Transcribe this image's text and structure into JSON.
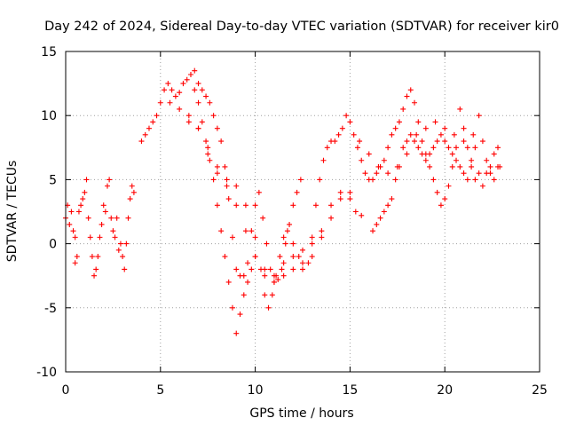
{
  "chart_data": {
    "type": "scatter",
    "title": "Day 242 of 2024, Sidereal Day-to-day VTEC variation (SDTVAR) for receiver kir0",
    "xlabel": "GPS time / hours",
    "ylabel": "SDTVAR / TECUs",
    "xlim": [
      0,
      25
    ],
    "ylim": [
      -10,
      15
    ],
    "xticks": [
      "0",
      "5",
      "10",
      "15",
      "20",
      "25"
    ],
    "yticks": [
      "-10",
      "-5",
      "0",
      "5",
      "10",
      "15"
    ],
    "grid": true,
    "marker": "+",
    "color": "#ff0000",
    "series": [
      {
        "name": "s1",
        "points": [
          [
            0.0,
            2.0
          ],
          [
            0.1,
            3.0
          ],
          [
            0.2,
            1.5
          ],
          [
            0.3,
            2.5
          ],
          [
            0.4,
            1.0
          ],
          [
            0.5,
            0.5
          ],
          [
            0.5,
            -1.5
          ],
          [
            0.6,
            -1.0
          ],
          [
            0.7,
            2.5
          ],
          [
            0.8,
            3.0
          ],
          [
            0.9,
            3.5
          ],
          [
            1.0,
            4.0
          ],
          [
            1.1,
            5.0
          ],
          [
            1.2,
            2.0
          ],
          [
            1.3,
            0.5
          ],
          [
            1.4,
            -1.0
          ],
          [
            1.5,
            -2.5
          ],
          [
            1.6,
            -2.0
          ],
          [
            1.7,
            -1.0
          ],
          [
            1.8,
            0.5
          ],
          [
            1.9,
            1.5
          ],
          [
            2.0,
            3.0
          ],
          [
            2.1,
            2.5
          ],
          [
            2.2,
            4.5
          ],
          [
            2.3,
            5.0
          ],
          [
            2.4,
            2.0
          ],
          [
            2.5,
            1.0
          ],
          [
            2.6,
            0.5
          ],
          [
            2.7,
            2.0
          ],
          [
            2.8,
            -0.5
          ],
          [
            2.9,
            0.0
          ],
          [
            3.0,
            -1.0
          ],
          [
            3.1,
            -2.0
          ],
          [
            3.2,
            0.0
          ],
          [
            3.3,
            2.0
          ],
          [
            3.4,
            3.5
          ],
          [
            3.5,
            4.5
          ],
          [
            3.6,
            4.0
          ]
        ]
      },
      {
        "name": "s2",
        "points": [
          [
            4.0,
            8.0
          ],
          [
            4.2,
            8.5
          ],
          [
            4.4,
            9.0
          ],
          [
            4.6,
            9.5
          ],
          [
            4.8,
            10.0
          ],
          [
            5.0,
            11.0
          ],
          [
            5.2,
            12.0
          ],
          [
            5.4,
            12.5
          ],
          [
            5.6,
            12.0
          ],
          [
            5.8,
            11.5
          ],
          [
            6.0,
            11.8
          ],
          [
            6.2,
            12.5
          ],
          [
            6.4,
            12.8
          ],
          [
            6.6,
            13.2
          ],
          [
            6.8,
            13.5
          ],
          [
            7.0,
            12.5
          ],
          [
            7.2,
            12.0
          ],
          [
            7.4,
            11.5
          ],
          [
            7.6,
            11.0
          ],
          [
            7.8,
            10.0
          ],
          [
            8.0,
            9.0
          ],
          [
            8.2,
            8.0
          ],
          [
            8.4,
            6.0
          ],
          [
            8.6,
            3.5
          ],
          [
            8.8,
            0.5
          ],
          [
            9.0,
            -2.0
          ],
          [
            9.2,
            -2.5
          ],
          [
            9.4,
            -2.5
          ],
          [
            9.6,
            -1.5
          ],
          [
            9.8,
            1.0
          ],
          [
            10.0,
            3.0
          ],
          [
            10.2,
            4.0
          ],
          [
            10.4,
            2.0
          ],
          [
            10.6,
            0.0
          ],
          [
            10.8,
            -2.0
          ],
          [
            11.0,
            -3.0
          ],
          [
            11.2,
            -2.8
          ],
          [
            11.4,
            -2.0
          ],
          [
            11.6,
            0.0
          ],
          [
            11.8,
            1.5
          ],
          [
            12.0,
            3.0
          ],
          [
            12.2,
            4.0
          ],
          [
            12.4,
            5.0
          ]
        ]
      },
      {
        "name": "s3",
        "points": [
          [
            5.5,
            11.0
          ],
          [
            6.0,
            10.5
          ],
          [
            6.5,
            10.0
          ],
          [
            7.0,
            9.0
          ],
          [
            7.5,
            7.0
          ],
          [
            8.0,
            5.5
          ],
          [
            8.5,
            5.0
          ],
          [
            9.0,
            4.5
          ],
          [
            9.5,
            3.0
          ],
          [
            10.0,
            0.5
          ],
          [
            10.3,
            -2.0
          ],
          [
            10.5,
            -4.0
          ],
          [
            10.7,
            -5.0
          ],
          [
            10.9,
            -4.0
          ],
          [
            11.1,
            -2.5
          ],
          [
            11.3,
            -1.0
          ],
          [
            11.5,
            0.5
          ],
          [
            11.7,
            1.0
          ],
          [
            12.0,
            0.0
          ],
          [
            12.3,
            -1.0
          ],
          [
            12.5,
            -2.0
          ],
          [
            12.8,
            -1.5
          ],
          [
            13.0,
            0.5
          ],
          [
            13.2,
            3.0
          ],
          [
            13.4,
            5.0
          ],
          [
            13.6,
            6.5
          ],
          [
            13.8,
            7.5
          ],
          [
            14.0,
            8.0
          ],
          [
            14.2,
            8.0
          ],
          [
            14.4,
            8.5
          ],
          [
            14.6,
            9.0
          ],
          [
            14.8,
            10.0
          ],
          [
            15.0,
            9.5
          ],
          [
            15.2,
            8.5
          ],
          [
            15.4,
            7.5
          ],
          [
            15.6,
            6.5
          ],
          [
            15.8,
            5.5
          ],
          [
            16.0,
            5.0
          ],
          [
            16.2,
            5.0
          ],
          [
            16.4,
            5.5
          ],
          [
            16.6,
            6.0
          ],
          [
            16.8,
            6.5
          ],
          [
            17.0,
            7.5
          ],
          [
            17.2,
            8.5
          ],
          [
            17.4,
            9.0
          ],
          [
            17.6,
            9.5
          ],
          [
            17.8,
            10.5
          ],
          [
            18.0,
            11.5
          ],
          [
            18.2,
            12.0
          ],
          [
            18.4,
            11.0
          ],
          [
            18.6,
            9.5
          ],
          [
            18.8,
            8.0
          ],
          [
            19.0,
            7.0
          ],
          [
            19.2,
            6.0
          ],
          [
            19.4,
            5.0
          ],
          [
            19.6,
            4.0
          ],
          [
            19.8,
            3.0
          ],
          [
            20.0,
            3.5
          ],
          [
            20.2,
            4.5
          ],
          [
            20.4,
            6.0
          ],
          [
            20.6,
            7.5
          ],
          [
            20.8,
            10.5
          ],
          [
            21.0,
            9.0
          ],
          [
            21.2,
            7.5
          ],
          [
            21.4,
            6.0
          ],
          [
            21.6,
            5.0
          ]
        ]
      },
      {
        "name": "s4",
        "points": [
          [
            6.8,
            12.0
          ],
          [
            7.0,
            11.0
          ],
          [
            7.2,
            9.5
          ],
          [
            7.4,
            8.0
          ],
          [
            7.6,
            6.5
          ],
          [
            7.8,
            5.0
          ],
          [
            8.0,
            3.0
          ],
          [
            8.2,
            1.0
          ],
          [
            8.4,
            -1.0
          ],
          [
            8.6,
            -3.0
          ],
          [
            8.8,
            -5.0
          ],
          [
            9.0,
            -7.0
          ],
          [
            9.2,
            -5.5
          ],
          [
            9.4,
            -4.0
          ],
          [
            9.6,
            -3.0
          ],
          [
            9.8,
            -2.0
          ],
          [
            10.0,
            -1.0
          ],
          [
            10.5,
            -2.0
          ],
          [
            11.0,
            -2.5
          ],
          [
            11.5,
            -1.5
          ],
          [
            12.0,
            -1.0
          ],
          [
            12.5,
            -0.5
          ],
          [
            13.0,
            0.0
          ],
          [
            13.5,
            1.0
          ],
          [
            14.0,
            3.0
          ],
          [
            14.5,
            4.0
          ],
          [
            15.0,
            3.5
          ],
          [
            15.3,
            2.5
          ],
          [
            15.6,
            2.2
          ]
        ]
      },
      {
        "name": "s5",
        "points": [
          [
            6.5,
            9.5
          ],
          [
            7.0,
            9.0
          ],
          [
            7.5,
            7.5
          ],
          [
            8.0,
            6.0
          ],
          [
            8.5,
            4.5
          ],
          [
            9.0,
            3.0
          ],
          [
            9.5,
            1.0
          ],
          [
            10.0,
            -1.0
          ],
          [
            10.5,
            -2.5
          ],
          [
            11.0,
            -3.0
          ],
          [
            11.5,
            -2.5
          ],
          [
            12.0,
            -2.0
          ],
          [
            12.5,
            -1.5
          ],
          [
            13.0,
            -1.0
          ],
          [
            13.5,
            0.5
          ],
          [
            14.0,
            2.0
          ],
          [
            14.5,
            3.5
          ],
          [
            15.0,
            4.0
          ]
        ]
      },
      {
        "name": "s6",
        "points": [
          [
            16.2,
            1.0
          ],
          [
            16.4,
            1.5
          ],
          [
            16.6,
            2.0
          ],
          [
            16.8,
            2.5
          ],
          [
            17.0,
            3.0
          ],
          [
            17.2,
            3.5
          ],
          [
            17.4,
            5.0
          ],
          [
            17.6,
            6.0
          ],
          [
            17.8,
            7.5
          ],
          [
            18.0,
            8.0
          ],
          [
            18.2,
            8.5
          ],
          [
            18.4,
            8.0
          ],
          [
            18.6,
            7.5
          ],
          [
            18.8,
            7.0
          ],
          [
            19.0,
            6.5
          ],
          [
            19.2,
            7.0
          ],
          [
            19.4,
            7.5
          ],
          [
            19.6,
            8.0
          ],
          [
            19.8,
            8.5
          ],
          [
            20.0,
            8.0
          ],
          [
            20.2,
            7.5
          ],
          [
            20.4,
            7.0
          ],
          [
            20.6,
            6.5
          ],
          [
            20.8,
            6.0
          ],
          [
            21.0,
            5.5
          ],
          [
            21.2,
            5.0
          ],
          [
            21.4,
            6.5
          ],
          [
            21.6,
            7.5
          ],
          [
            21.8,
            5.5
          ],
          [
            22.0,
            4.5
          ],
          [
            22.2,
            5.5
          ],
          [
            22.4,
            6.0
          ],
          [
            22.6,
            5.0
          ],
          [
            22.8,
            6.0
          ]
        ]
      },
      {
        "name": "s7",
        "points": [
          [
            15.5,
            8.0
          ],
          [
            16.0,
            7.0
          ],
          [
            16.5,
            6.0
          ],
          [
            17.0,
            5.5
          ],
          [
            17.5,
            6.0
          ],
          [
            18.0,
            7.0
          ],
          [
            18.5,
            8.5
          ],
          [
            19.0,
            9.0
          ],
          [
            19.5,
            9.5
          ],
          [
            20.0,
            9.0
          ],
          [
            20.5,
            8.5
          ],
          [
            21.0,
            8.0
          ],
          [
            21.5,
            8.5
          ],
          [
            21.8,
            10.0
          ],
          [
            22.0,
            8.0
          ],
          [
            22.2,
            6.5
          ],
          [
            22.4,
            5.5
          ],
          [
            22.6,
            7.0
          ],
          [
            22.8,
            7.5
          ],
          [
            22.9,
            6.0
          ]
        ]
      }
    ]
  }
}
